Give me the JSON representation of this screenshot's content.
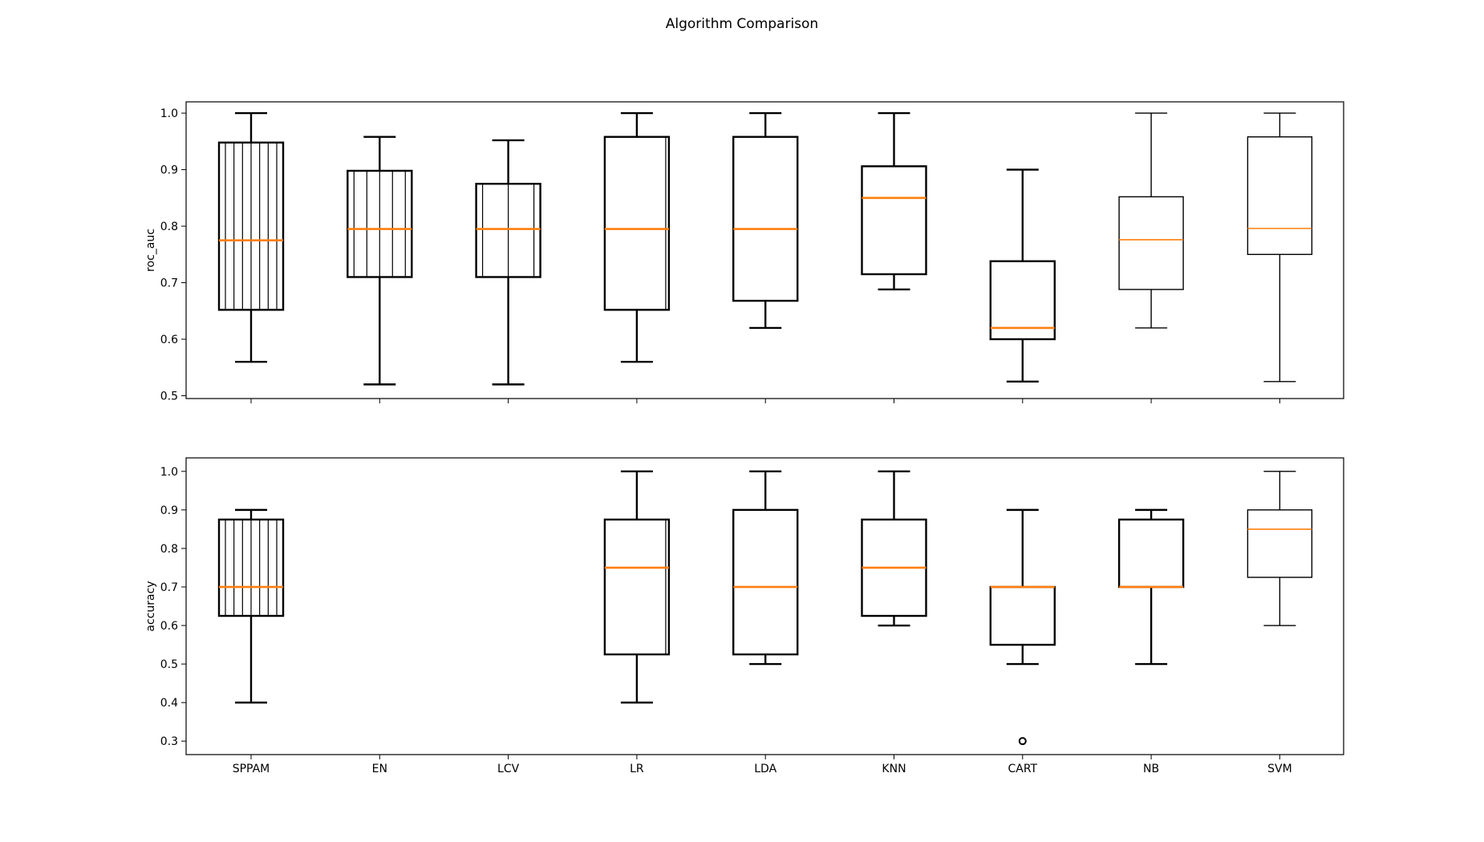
{
  "title": "Algorithm Comparison",
  "colors": {
    "box": "#000000",
    "median": "#ff7f0e",
    "frame": "#000000",
    "background": "#ffffff"
  },
  "chart_data": [
    {
      "type": "box",
      "ylabel": "roc_auc",
      "xlabel": "",
      "ylim": [
        0.495,
        1.02
      ],
      "yticks": [
        0.5,
        0.6,
        0.7,
        0.8,
        0.9,
        1.0
      ],
      "ytick_labels": [
        "0.5",
        "0.6",
        "0.7",
        "0.8",
        "0.9",
        "1.0"
      ],
      "categories": [
        "SPPAM",
        "EN",
        "LCV",
        "LR",
        "LDA",
        "KNN",
        "CART",
        "NB",
        "SVM"
      ],
      "show_xtick_labels": false,
      "grid": false,
      "boxes": [
        {
          "category": "SPPAM",
          "whislo": 0.56,
          "q1": 0.652,
          "med": 0.775,
          "q3": 0.948,
          "whishi": 1.0,
          "fliers": [],
          "bold": true,
          "vlines": 7
        },
        {
          "category": "EN",
          "whislo": 0.52,
          "q1": 0.71,
          "med": 0.795,
          "q3": 0.898,
          "whishi": 0.958,
          "fliers": [],
          "bold": true,
          "vlines": 5
        },
        {
          "category": "LCV",
          "whislo": 0.52,
          "q1": 0.71,
          "med": 0.795,
          "q3": 0.875,
          "whishi": 0.952,
          "fliers": [],
          "bold": true,
          "vlines": 3
        },
        {
          "category": "LR",
          "whislo": 0.56,
          "q1": 0.652,
          "med": 0.795,
          "q3": 0.958,
          "whishi": 1.0,
          "fliers": [],
          "bold": true,
          "vlines": 1
        },
        {
          "category": "LDA",
          "whislo": 0.62,
          "q1": 0.668,
          "med": 0.795,
          "q3": 0.958,
          "whishi": 1.0,
          "fliers": [],
          "bold": true,
          "vlines": 0
        },
        {
          "category": "KNN",
          "whislo": 0.688,
          "q1": 0.715,
          "med": 0.85,
          "q3": 0.906,
          "whishi": 1.0,
          "fliers": [],
          "bold": true,
          "vlines": 0
        },
        {
          "category": "CART",
          "whislo": 0.525,
          "q1": 0.6,
          "med": 0.62,
          "q3": 0.738,
          "whishi": 0.9,
          "fliers": [],
          "bold": true,
          "vlines": 0
        },
        {
          "category": "NB",
          "whislo": 0.62,
          "q1": 0.688,
          "med": 0.776,
          "q3": 0.852,
          "whishi": 1.0,
          "fliers": [],
          "bold": false,
          "vlines": 0
        },
        {
          "category": "SVM",
          "whislo": 0.525,
          "q1": 0.75,
          "med": 0.796,
          "q3": 0.958,
          "whishi": 1.0,
          "fliers": [],
          "bold": false,
          "vlines": 0
        }
      ]
    },
    {
      "type": "box",
      "ylabel": "accuracy",
      "xlabel": "",
      "ylim": [
        0.265,
        1.035
      ],
      "yticks": [
        0.3,
        0.4,
        0.5,
        0.6,
        0.7,
        0.8,
        0.9,
        1.0
      ],
      "ytick_labels": [
        "0.3",
        "0.4",
        "0.5",
        "0.6",
        "0.7",
        "0.8",
        "0.9",
        "1.0"
      ],
      "categories": [
        "SPPAM",
        "EN",
        "LCV",
        "LR",
        "LDA",
        "KNN",
        "CART",
        "NB",
        "SVM"
      ],
      "show_xtick_labels": true,
      "grid": false,
      "boxes": [
        {
          "category": "SPPAM",
          "whislo": 0.4,
          "q1": 0.625,
          "med": 0.7,
          "q3": 0.875,
          "whishi": 0.9,
          "fliers": [],
          "bold": true,
          "vlines": 7
        },
        {
          "category": "EN",
          "empty": true
        },
        {
          "category": "LCV",
          "empty": true
        },
        {
          "category": "LR",
          "whislo": 0.4,
          "q1": 0.525,
          "med": 0.75,
          "q3": 0.875,
          "whishi": 1.0,
          "fliers": [],
          "bold": true,
          "vlines": 1
        },
        {
          "category": "LDA",
          "whislo": 0.5,
          "q1": 0.525,
          "med": 0.7,
          "q3": 0.9,
          "whishi": 1.0,
          "fliers": [],
          "bold": true,
          "vlines": 0
        },
        {
          "category": "KNN",
          "whislo": 0.6,
          "q1": 0.625,
          "med": 0.75,
          "q3": 0.875,
          "whishi": 1.0,
          "fliers": [],
          "bold": true,
          "vlines": 0
        },
        {
          "category": "CART",
          "whislo": 0.5,
          "q1": 0.55,
          "med": 0.7,
          "q3": 0.7,
          "whishi": 0.9,
          "fliers": [
            0.3
          ],
          "bold": true,
          "vlines": 0
        },
        {
          "category": "NB",
          "whislo": 0.5,
          "q1": 0.7,
          "med": 0.7,
          "q3": 0.875,
          "whishi": 0.9,
          "fliers": [],
          "bold": true,
          "vlines": 0
        },
        {
          "category": "SVM",
          "whislo": 0.6,
          "q1": 0.725,
          "med": 0.85,
          "q3": 0.9,
          "whishi": 1.0,
          "fliers": [],
          "bold": false,
          "vlines": 0
        }
      ]
    }
  ]
}
